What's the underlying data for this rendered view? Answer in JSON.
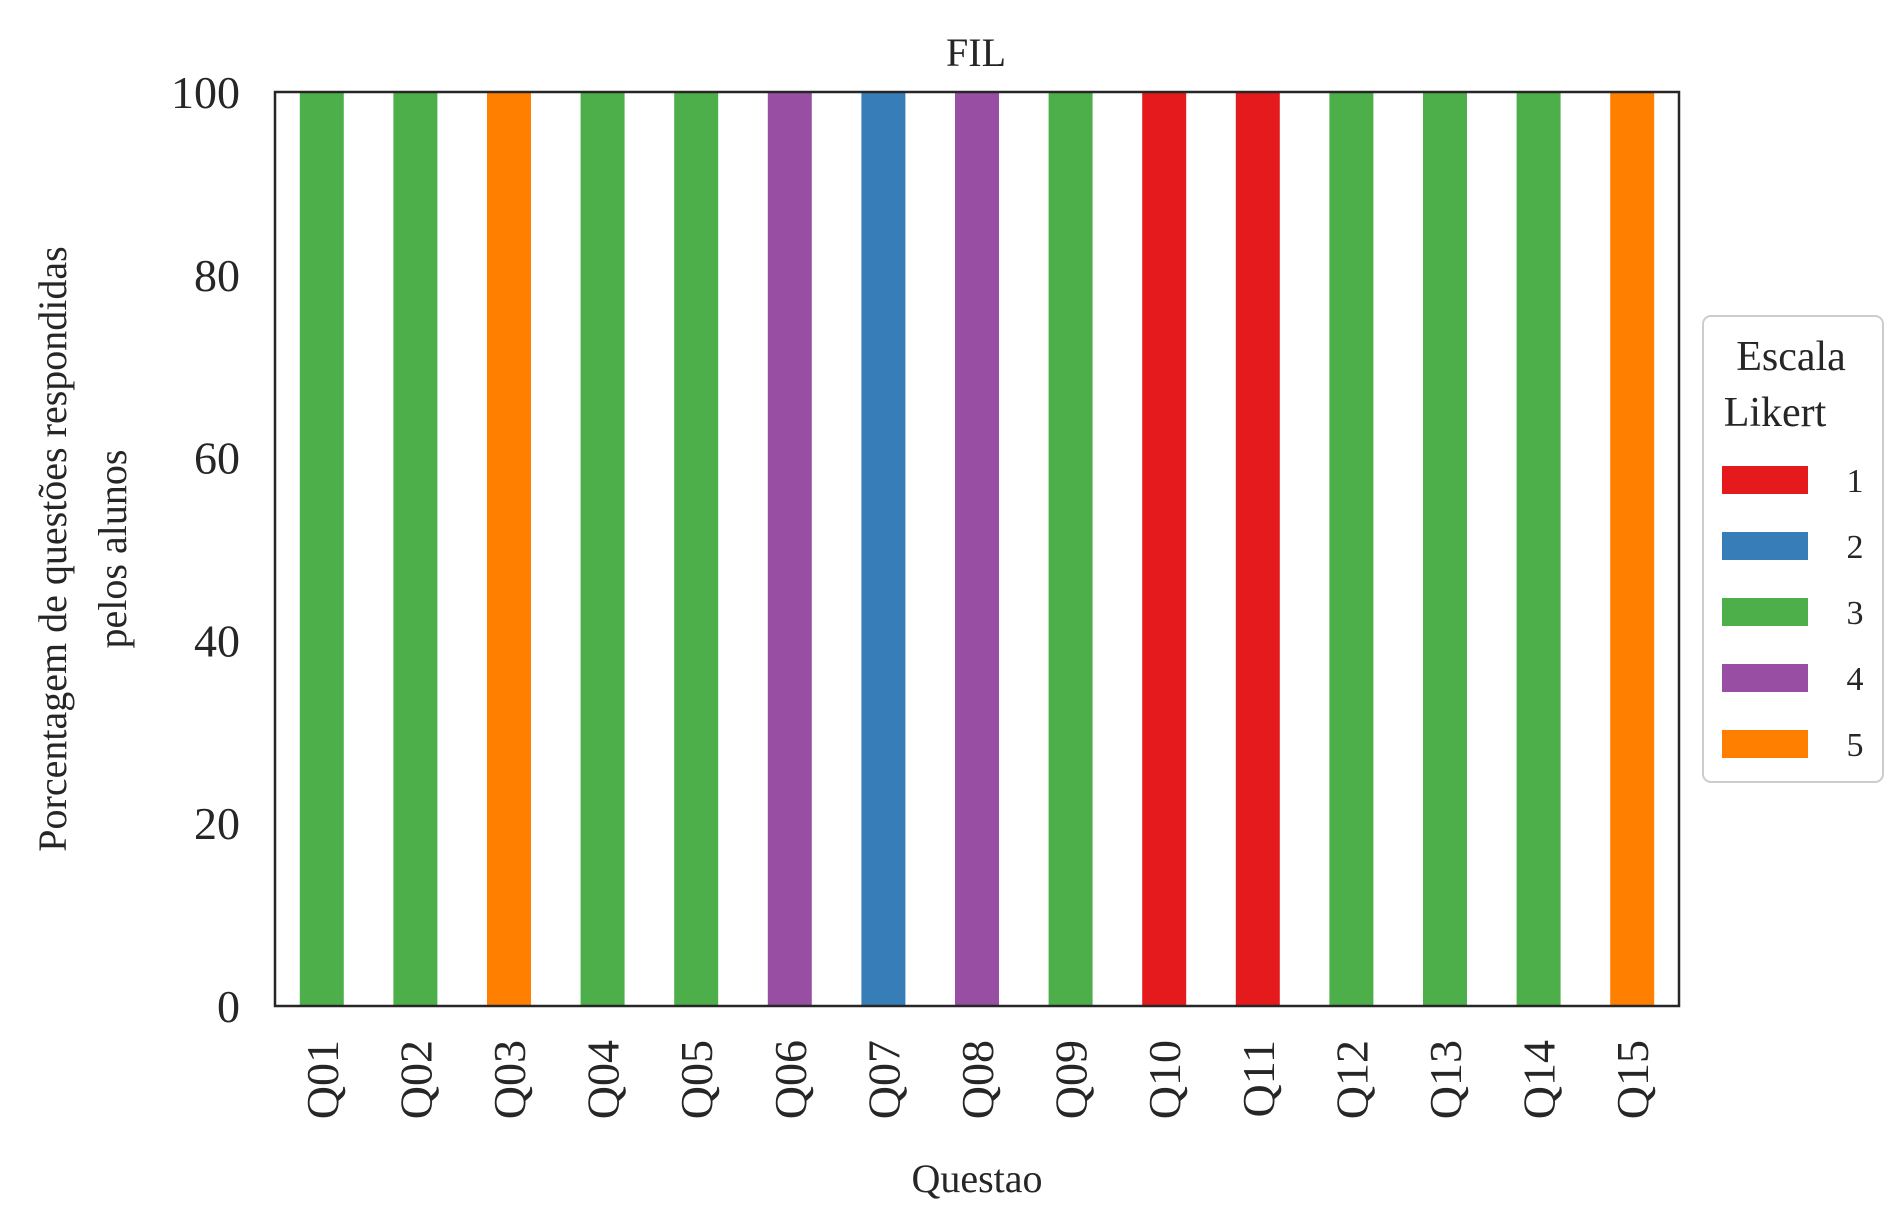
{
  "chart_data": {
    "type": "bar",
    "stacked": true,
    "title": "FIL",
    "xlabel": "Questao",
    "ylabel_lines": [
      "Porcentagem de questões respondidas",
      "pelos alunos"
    ],
    "categories": [
      "Q01",
      "Q02",
      "Q03",
      "Q04",
      "Q05",
      "Q06",
      "Q07",
      "Q08",
      "Q09",
      "Q10",
      "Q11",
      "Q12",
      "Q13",
      "Q14",
      "Q15"
    ],
    "series": [
      {
        "name": "1",
        "color": "#e41a1c",
        "values": [
          0,
          0,
          0,
          0,
          0,
          0,
          0,
          0,
          0,
          100,
          100,
          0,
          0,
          0,
          0
        ]
      },
      {
        "name": "2",
        "color": "#377eb8",
        "values": [
          0,
          0,
          0,
          0,
          0,
          0,
          100,
          0,
          0,
          0,
          0,
          0,
          0,
          0,
          0
        ]
      },
      {
        "name": "3",
        "color": "#4daf4a",
        "values": [
          100,
          100,
          0,
          100,
          100,
          0,
          0,
          0,
          100,
          0,
          0,
          100,
          100,
          100,
          0
        ]
      },
      {
        "name": "4",
        "color": "#984ea3",
        "values": [
          0,
          0,
          0,
          0,
          0,
          100,
          0,
          100,
          0,
          0,
          0,
          0,
          0,
          0,
          0
        ]
      },
      {
        "name": "5",
        "color": "#ff7f00",
        "values": [
          0,
          0,
          100,
          0,
          0,
          0,
          0,
          0,
          0,
          0,
          0,
          0,
          0,
          0,
          100
        ]
      }
    ],
    "ylim": [
      0,
      100
    ],
    "yticks": [
      "0",
      "20",
      "40",
      "60",
      "80",
      "100"
    ],
    "grid": false,
    "legend": {
      "title_lines": [
        "Escala",
        "Likert"
      ],
      "placement": "center-right-outside"
    }
  }
}
